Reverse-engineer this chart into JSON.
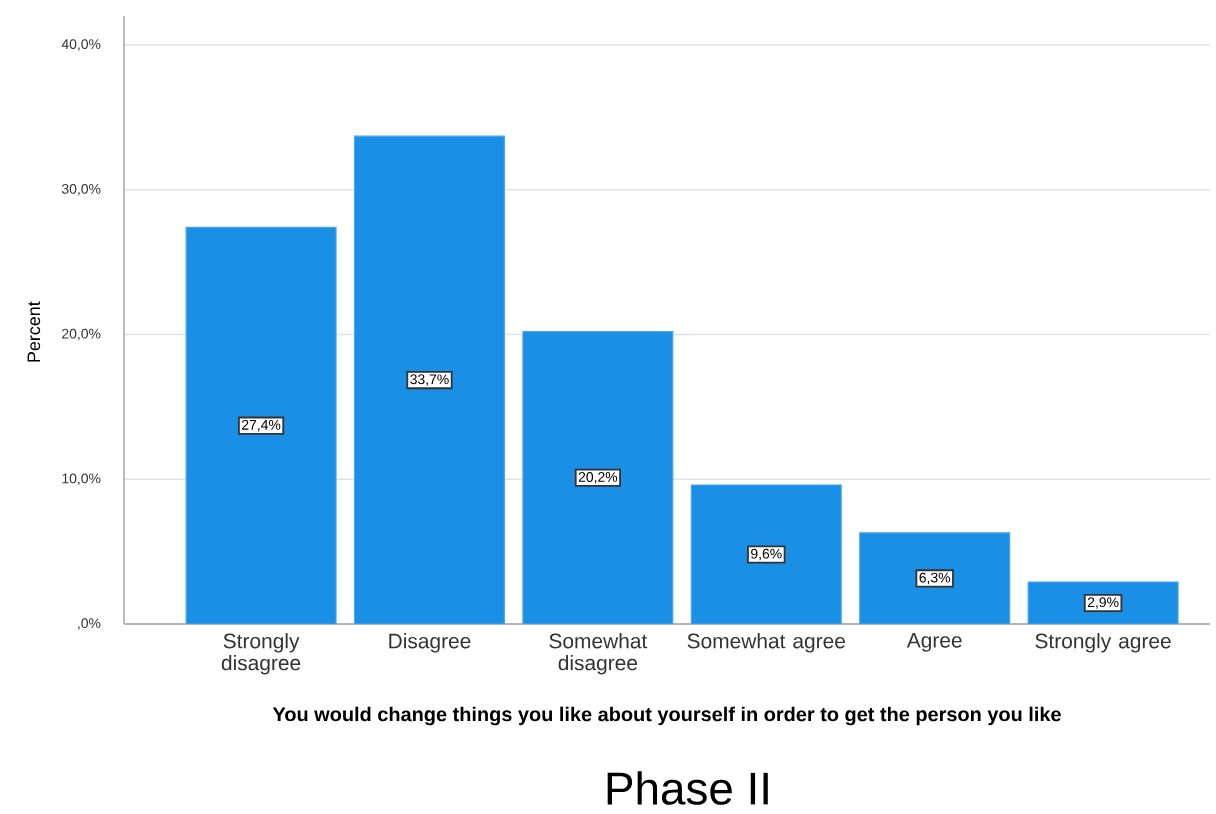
{
  "chart_data": {
    "type": "bar",
    "xlabel": "You would change things you like about yourself in order to get the person you like",
    "ylabel": "Percent",
    "annotations": [
      "Phase II"
    ],
    "categories": [
      "Strongly disagree",
      "Disagree",
      "Somewhat disagree",
      "Somewhat agree",
      "Agree",
      "Strongly agree"
    ],
    "values": [
      27.4,
      33.7,
      20.2,
      9.6,
      6.3,
      2.9
    ],
    "value_labels": [
      "27,4%",
      "33,7%",
      "20,2%",
      "9,6%",
      "6,3%",
      "2,9%"
    ],
    "color": "#1a8fe6",
    "ylim": [
      0,
      42
    ],
    "yticks": [
      {
        "value": 0,
        "label": ",0%"
      },
      {
        "value": 10,
        "label": "10,0%"
      },
      {
        "value": 20,
        "label": "20,0%"
      },
      {
        "value": 30,
        "label": "30,0%"
      },
      {
        "value": 40,
        "label": "40,0%"
      }
    ],
    "grid": "y"
  }
}
